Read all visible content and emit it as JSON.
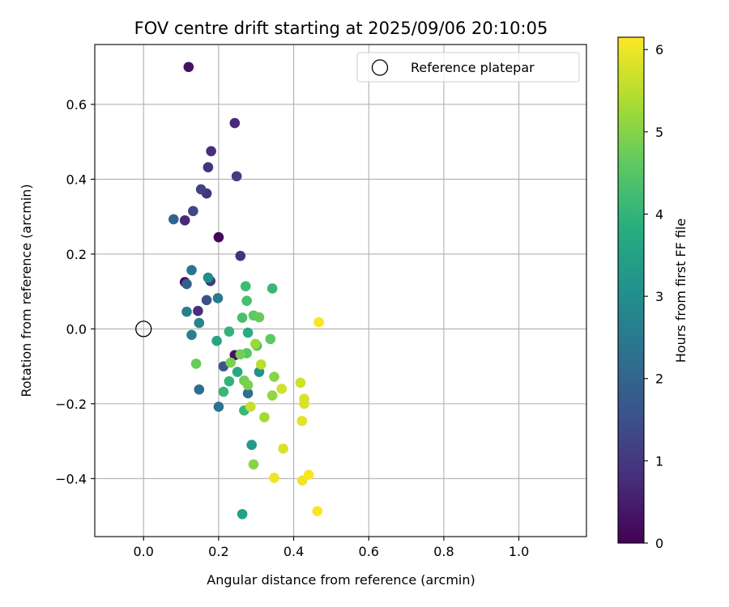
{
  "chart_data": {
    "type": "scatter",
    "title": "FOV centre drift starting at 2025/09/06 20:10:05",
    "xlabel": "Angular distance from reference (arcmin)",
    "ylabel": "Rotation from reference (arcmin)",
    "xlim": [
      -0.13,
      1.18
    ],
    "ylim": [
      -0.555,
      0.76
    ],
    "xticks": [
      0.0,
      0.2,
      0.4,
      0.6,
      0.8,
      1.0
    ],
    "xtick_labels": [
      "0.0",
      "0.2",
      "0.4",
      "0.6",
      "0.8",
      "1.0"
    ],
    "yticks": [
      -0.4,
      -0.2,
      0.0,
      0.2,
      0.4,
      0.6
    ],
    "ytick_labels": [
      "−0.4",
      "−0.2",
      "0.0",
      "0.2",
      "0.4",
      "0.6"
    ],
    "grid": true,
    "legend": {
      "position": "top-right",
      "entries": [
        "Reference platepar"
      ]
    },
    "reference_point": {
      "x": 0.0,
      "y": 0.0,
      "label": "Reference platepar"
    },
    "colorbar": {
      "label": "Hours from first FF file",
      "colormap": "viridis",
      "range": [
        0,
        6.15
      ],
      "ticks": [
        0,
        1,
        2,
        3,
        4,
        5,
        6
      ],
      "tick_labels": [
        "0",
        "1",
        "2",
        "3",
        "4",
        "5",
        "6"
      ]
    },
    "series": [
      {
        "name": "FOV centre drift",
        "points": [
          {
            "x": 0.12,
            "y": 0.7,
            "c": 0.3
          },
          {
            "x": 0.2,
            "y": 0.245,
            "c": 0.1
          },
          {
            "x": 0.11,
            "y": 0.125,
            "c": 0.2
          },
          {
            "x": 0.243,
            "y": -0.07,
            "c": 0.3
          },
          {
            "x": 0.243,
            "y": 0.55,
            "c": 0.7
          },
          {
            "x": 0.18,
            "y": 0.475,
            "c": 0.8
          },
          {
            "x": 0.11,
            "y": 0.29,
            "c": 0.7
          },
          {
            "x": 0.145,
            "y": 0.048,
            "c": 0.8
          },
          {
            "x": 0.172,
            "y": 0.432,
            "c": 0.9
          },
          {
            "x": 0.168,
            "y": 0.362,
            "c": 0.9
          },
          {
            "x": 0.258,
            "y": 0.195,
            "c": 0.9
          },
          {
            "x": 0.178,
            "y": 0.128,
            "c": 1.0
          },
          {
            "x": 0.248,
            "y": 0.408,
            "c": 1.1
          },
          {
            "x": 0.153,
            "y": 0.373,
            "c": 1.2
          },
          {
            "x": 0.132,
            "y": 0.315,
            "c": 1.3
          },
          {
            "x": 0.168,
            "y": 0.077,
            "c": 1.5
          },
          {
            "x": 0.213,
            "y": -0.1,
            "c": 1.6
          },
          {
            "x": 0.115,
            "y": 0.12,
            "c": 1.9
          },
          {
            "x": 0.08,
            "y": 0.293,
            "c": 2.0
          },
          {
            "x": 0.148,
            "y": -0.162,
            "c": 2.2
          },
          {
            "x": 0.278,
            "y": -0.172,
            "c": 2.2
          },
          {
            "x": 0.128,
            "y": 0.157,
            "c": 2.4
          },
          {
            "x": 0.2,
            "y": -0.208,
            "c": 2.4
          },
          {
            "x": 0.198,
            "y": 0.082,
            "c": 2.5
          },
          {
            "x": 0.115,
            "y": 0.046,
            "c": 2.6
          },
          {
            "x": 0.128,
            "y": -0.016,
            "c": 2.7
          },
          {
            "x": 0.148,
            "y": 0.016,
            "c": 2.8
          },
          {
            "x": 0.172,
            "y": 0.137,
            "c": 3.0
          },
          {
            "x": 0.308,
            "y": -0.115,
            "c": 3.1
          },
          {
            "x": 0.288,
            "y": -0.31,
            "c": 3.3
          },
          {
            "x": 0.263,
            "y": -0.495,
            "c": 3.5
          },
          {
            "x": 0.195,
            "y": -0.032,
            "c": 3.6
          },
          {
            "x": 0.25,
            "y": -0.115,
            "c": 3.7
          },
          {
            "x": 0.278,
            "y": -0.01,
            "c": 3.8
          },
          {
            "x": 0.228,
            "y": -0.007,
            "c": 4.0
          },
          {
            "x": 0.228,
            "y": -0.14,
            "c": 4.0
          },
          {
            "x": 0.213,
            "y": -0.168,
            "c": 4.1
          },
          {
            "x": 0.343,
            "y": 0.108,
            "c": 4.1
          },
          {
            "x": 0.268,
            "y": -0.218,
            "c": 4.1
          },
          {
            "x": 0.272,
            "y": 0.114,
            "c": 4.2
          },
          {
            "x": 0.275,
            "y": 0.075,
            "c": 4.3
          },
          {
            "x": 0.263,
            "y": 0.03,
            "c": 4.3
          },
          {
            "x": 0.302,
            "y": -0.045,
            "c": 4.4
          },
          {
            "x": 0.275,
            "y": -0.065,
            "c": 4.5
          },
          {
            "x": 0.338,
            "y": -0.027,
            "c": 4.6
          },
          {
            "x": 0.293,
            "y": 0.036,
            "c": 4.6
          },
          {
            "x": 0.308,
            "y": 0.031,
            "c": 4.7
          },
          {
            "x": 0.14,
            "y": -0.093,
            "c": 4.7
          },
          {
            "x": 0.258,
            "y": -0.068,
            "c": 4.8
          },
          {
            "x": 0.268,
            "y": -0.138,
            "c": 4.8
          },
          {
            "x": 0.232,
            "y": -0.09,
            "c": 4.9
          },
          {
            "x": 0.278,
            "y": -0.15,
            "c": 4.9
          },
          {
            "x": 0.293,
            "y": -0.362,
            "c": 5.0
          },
          {
            "x": 0.348,
            "y": -0.128,
            "c": 5.0
          },
          {
            "x": 0.343,
            "y": -0.178,
            "c": 5.1
          },
          {
            "x": 0.298,
            "y": -0.04,
            "c": 5.2
          },
          {
            "x": 0.322,
            "y": -0.236,
            "c": 5.3
          },
          {
            "x": 0.313,
            "y": -0.095,
            "c": 5.5
          },
          {
            "x": 0.285,
            "y": -0.208,
            "c": 5.6
          },
          {
            "x": 0.368,
            "y": -0.16,
            "c": 5.7
          },
          {
            "x": 0.418,
            "y": -0.144,
            "c": 5.7
          },
          {
            "x": 0.428,
            "y": -0.187,
            "c": 5.8
          },
          {
            "x": 0.428,
            "y": -0.2,
            "c": 5.8
          },
          {
            "x": 0.372,
            "y": -0.32,
            "c": 5.8
          },
          {
            "x": 0.422,
            "y": -0.246,
            "c": 5.9
          },
          {
            "x": 0.423,
            "y": -0.405,
            "c": 6.0
          },
          {
            "x": 0.348,
            "y": -0.398,
            "c": 6.0
          },
          {
            "x": 0.44,
            "y": -0.39,
            "c": 6.1
          },
          {
            "x": 0.463,
            "y": -0.487,
            "c": 6.1
          },
          {
            "x": 0.467,
            "y": 0.018,
            "c": 6.1
          }
        ]
      }
    ]
  }
}
